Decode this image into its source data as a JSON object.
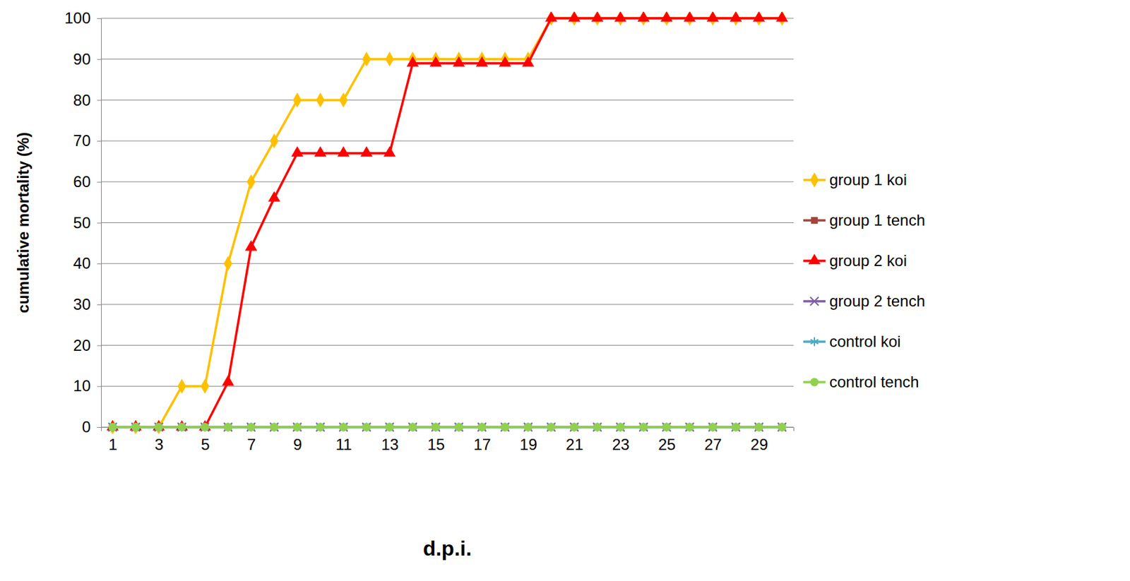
{
  "chart_data": {
    "type": "line",
    "x_label": "d.p.i.",
    "y_label": "cumulative mortality (%)",
    "categories": [
      1,
      null,
      3,
      null,
      5,
      null,
      7,
      null,
      9,
      null,
      11,
      null,
      13,
      null,
      15,
      null,
      17,
      null,
      19,
      null,
      21,
      null,
      23,
      null,
      25,
      null,
      27,
      null,
      29,
      null
    ],
    "ylim": [
      0,
      100
    ],
    "yticks": [
      0,
      10,
      20,
      30,
      40,
      50,
      60,
      70,
      80,
      90,
      100
    ],
    "grid": true,
    "legend": "right",
    "series": [
      {
        "name": "group 1 koi",
        "color": "#ffc000",
        "marker": "diamond",
        "values": [
          0,
          0,
          0,
          10,
          10,
          40,
          60,
          70,
          80,
          80,
          80,
          90,
          90,
          90,
          90,
          90,
          90,
          90,
          90,
          100,
          100,
          100,
          100,
          100,
          100,
          100,
          100,
          100,
          100,
          100
        ]
      },
      {
        "name": "group 1 tench",
        "color": "#a5443c",
        "marker": "square",
        "values": [
          0,
          0,
          0,
          0,
          0,
          0,
          0,
          0,
          0,
          0,
          0,
          0,
          0,
          0,
          0,
          0,
          0,
          0,
          0,
          0,
          0,
          0,
          0,
          0,
          0,
          0,
          0,
          0,
          0,
          0
        ]
      },
      {
        "name": "group 2 koi",
        "color": "#ff0000",
        "marker": "triangle",
        "values": [
          0,
          0,
          0,
          0,
          0,
          11,
          44,
          56,
          67,
          67,
          67,
          67,
          67,
          89,
          89,
          89,
          89,
          89,
          89,
          100,
          100,
          100,
          100,
          100,
          100,
          100,
          100,
          100,
          100,
          100
        ]
      },
      {
        "name": "group 2 tench",
        "color": "#7e5fa0",
        "marker": "x",
        "values": [
          0,
          0,
          0,
          0,
          0,
          0,
          0,
          0,
          0,
          0,
          0,
          0,
          0,
          0,
          0,
          0,
          0,
          0,
          0,
          0,
          0,
          0,
          0,
          0,
          0,
          0,
          0,
          0,
          0,
          0
        ]
      },
      {
        "name": "control koi",
        "color": "#4bacc6",
        "marker": "asterisk",
        "values": [
          0,
          0,
          0,
          0,
          0,
          0,
          0,
          0,
          0,
          0,
          0,
          0,
          0,
          0,
          0,
          0,
          0,
          0,
          0,
          0,
          0,
          0,
          0,
          0,
          0,
          0,
          0,
          0,
          0,
          0
        ]
      },
      {
        "name": "control tench",
        "color": "#92d050",
        "marker": "circle",
        "values": [
          0,
          0,
          0,
          0,
          0,
          0,
          0,
          0,
          0,
          0,
          0,
          0,
          0,
          0,
          0,
          0,
          0,
          0,
          0,
          0,
          0,
          0,
          0,
          0,
          0,
          0,
          0,
          0,
          0,
          0
        ]
      }
    ]
  }
}
